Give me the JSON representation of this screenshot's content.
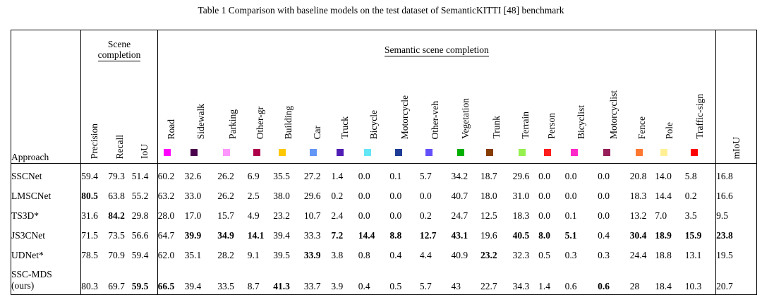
{
  "caption": "Table 1  Comparison with baseline models on the test dataset of SemanticKITTI [48] benchmark",
  "header": {
    "approach": "Approach",
    "scene_completion": "Scene completion",
    "semantic_scene_completion": "Semantic scene completion",
    "sc_metrics": [
      "Precision",
      "Recall",
      "IoU"
    ],
    "classes": [
      {
        "name": "Road",
        "color": "#ff00ff"
      },
      {
        "name": "Sidewalk",
        "color": "#4b004b"
      },
      {
        "name": "Parking",
        "color": "#ff96ff"
      },
      {
        "name": "Other-gr",
        "color": "#af004b"
      },
      {
        "name": "Building",
        "color": "#ffc800"
      },
      {
        "name": "Car",
        "color": "#6496f5"
      },
      {
        "name": "Truck",
        "color": "#501eb4"
      },
      {
        "name": "Bicycle",
        "color": "#64e6f5"
      },
      {
        "name": "Motorcycle",
        "color": "#1e3c96"
      },
      {
        "name": "Other-veh",
        "color": "#6450fa"
      },
      {
        "name": "Vegetation",
        "color": "#00af00"
      },
      {
        "name": "Trunk",
        "color": "#873c00"
      },
      {
        "name": "Terrain",
        "color": "#96f050"
      },
      {
        "name": "Person",
        "color": "#ff1e1e"
      },
      {
        "name": "Bicyclist",
        "color": "#ff28c8"
      },
      {
        "name": "Motorcyclist",
        "color": "#961e5a"
      },
      {
        "name": "Fence",
        "color": "#ff7832"
      },
      {
        "name": "Pole",
        "color": "#fff096"
      },
      {
        "name": "Traffic-sign",
        "color": "#ff0000"
      }
    ],
    "miou": "mIoU"
  },
  "rows": [
    {
      "name": "SSCNet",
      "values": [
        "59.4",
        "79.3",
        "51.4",
        "60.2",
        "32.6",
        "26.2",
        "6.9",
        "35.5",
        "27.2",
        "1.4",
        "0.0",
        "0.1",
        "5.7",
        "34.2",
        "18.7",
        "29.6",
        "0.0",
        "0.0",
        "0.0",
        "20.8",
        "14.0",
        "5.8",
        "16.8"
      ],
      "bold": []
    },
    {
      "name": "LMSCNet",
      "values": [
        "80.5",
        "63.8",
        "55.2",
        "63.2",
        "33.0",
        "26.2",
        "2.5",
        "38.0",
        "29.6",
        "0.2",
        "0.0",
        "0.0",
        "0.0",
        "40.7",
        "18.0",
        "31.0",
        "0.0",
        "0.0",
        "0.0",
        "18.3",
        "14.4",
        "0.2",
        "16.6"
      ],
      "bold": [
        0
      ]
    },
    {
      "name": "TS3D*",
      "values": [
        "31.6",
        "84.2",
        "29.8",
        "28.0",
        "17.0",
        "15.7",
        "4.9",
        "23.2",
        "10.7",
        "2.4",
        "0.0",
        "0.0",
        "0.2",
        "24.7",
        "12.5",
        "18.3",
        "0.0",
        "0.1",
        "0.0",
        "13.2",
        "7.0",
        "3.5",
        "9.5"
      ],
      "bold": [
        1
      ]
    },
    {
      "name": "JS3CNet",
      "values": [
        "71.5",
        "73.5",
        "56.6",
        "64.7",
        "39.9",
        "34.9",
        "14.1",
        "39.4",
        "33.3",
        "7.2",
        "14.4",
        "8.8",
        "12.7",
        "43.1",
        "19.6",
        "40.5",
        "8.0",
        "5.1",
        "0.4",
        "30.4",
        "18.9",
        "15.9",
        "23.8"
      ],
      "bold": [
        4,
        5,
        6,
        9,
        10,
        11,
        12,
        13,
        15,
        16,
        17,
        19,
        20,
        21,
        22
      ]
    },
    {
      "name": "UDNet*",
      "values": [
        "78.5",
        "70.9",
        "59.4",
        "62.0",
        "35.1",
        "28.2",
        "9.1",
        "39.5",
        "33.9",
        "3.8",
        "0.8",
        "0.4",
        "4.4",
        "40.9",
        "23.2",
        "32.3",
        "0.5",
        "0.3",
        "0.3",
        "24.4",
        "18.8",
        "13.1",
        "19.5"
      ],
      "bold": [
        8,
        14
      ]
    },
    {
      "name": "SSC-MDS (ours)",
      "name_line1": "SSC-MDS",
      "name_line2": "(ours)",
      "values": [
        "80.3",
        "69.7",
        "59.5",
        "66.5",
        "39.4",
        "33.5",
        "8.7",
        "41.3",
        "33.7",
        "3.9",
        "0.4",
        "0.5",
        "5.7",
        "43",
        "22.7",
        "34.3",
        "1.4",
        "0.6",
        "0.6",
        "28",
        "18.4",
        "10.3",
        "20.7"
      ],
      "bold": [
        2,
        3,
        7,
        18
      ]
    }
  ]
}
